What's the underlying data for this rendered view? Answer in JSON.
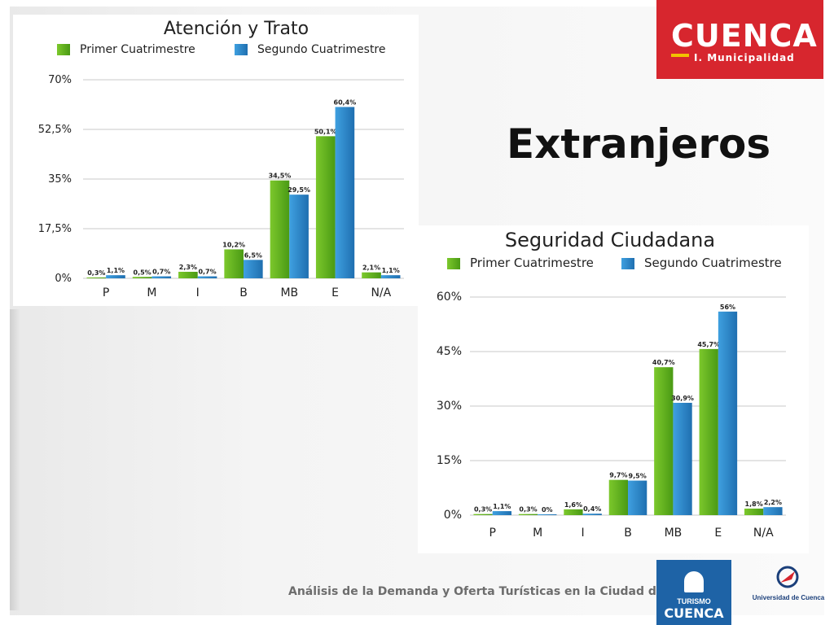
{
  "slide": {
    "title": "Extranjeros",
    "footer": "Análisis de la Demanda y Oferta Turísticas en la Ciudad de Cuenca"
  },
  "logos": {
    "cuenca": {
      "word": "CUENCA",
      "subtitle": "I. Municipalidad"
    },
    "turismo": {
      "line1": "TURISMO",
      "line2": "CUENCA"
    },
    "universidad": {
      "name": "Universidad de Cuenca"
    }
  },
  "colors": {
    "primer": "#5cab1c",
    "segundo": "#2b87c9",
    "brand_red": "#d7262e",
    "brand_blue": "#1e63a6"
  },
  "chart_data": [
    {
      "type": "bar",
      "title": "Atención y Trato",
      "categories": [
        "P",
        "M",
        "I",
        "B",
        "MB",
        "E",
        "N/A"
      ],
      "series": [
        {
          "name": "Primer Cuatrimestre",
          "values": [
            0.3,
            0.5,
            2.3,
            10.2,
            34.5,
            50.1,
            2.1
          ],
          "labels": [
            "0,3%",
            "0,5%",
            "2,3%",
            "10,2%",
            "34,5%",
            "50,1%",
            "2,1%"
          ]
        },
        {
          "name": "Segundo Cuatrimestre",
          "values": [
            1.1,
            0.7,
            0.7,
            6.5,
            29.5,
            60.4,
            1.1
          ],
          "labels": [
            "1,1%",
            "0,7%",
            "0,7%",
            "6,5%",
            "29,5%",
            "60,4%",
            "1,1%"
          ]
        }
      ],
      "yticks": [
        0,
        17.5,
        35,
        52.5,
        70
      ],
      "ytick_labels": [
        "0%",
        "17,5%",
        "35%",
        "52,5%",
        "70%"
      ],
      "ylim": [
        0,
        70
      ],
      "grid": true,
      "legend": "top"
    },
    {
      "type": "bar",
      "title": "Seguridad Ciudadana",
      "categories": [
        "P",
        "M",
        "I",
        "B",
        "MB",
        "E",
        "N/A"
      ],
      "series": [
        {
          "name": "Primer Cuatrimestre",
          "values": [
            0.3,
            0.3,
            1.6,
            9.7,
            40.7,
            45.7,
            1.8
          ],
          "labels": [
            "0,3%",
            "0,3%",
            "1,6%",
            "9,7%",
            "40,7%",
            "45,7%",
            "1,8%"
          ]
        },
        {
          "name": "Segundo Cuatrimestre",
          "values": [
            1.1,
            0,
            0.4,
            9.5,
            30.9,
            56,
            2.2
          ],
          "labels": [
            "1,1%",
            "0%",
            "0,4%",
            "9,5%",
            "30,9%",
            "56%",
            "2,2%"
          ]
        }
      ],
      "yticks": [
        0,
        15,
        30,
        45,
        60
      ],
      "ytick_labels": [
        "0%",
        "15%",
        "30%",
        "45%",
        "60%"
      ],
      "ylim": [
        0,
        60
      ],
      "grid": true,
      "legend": "top"
    }
  ]
}
